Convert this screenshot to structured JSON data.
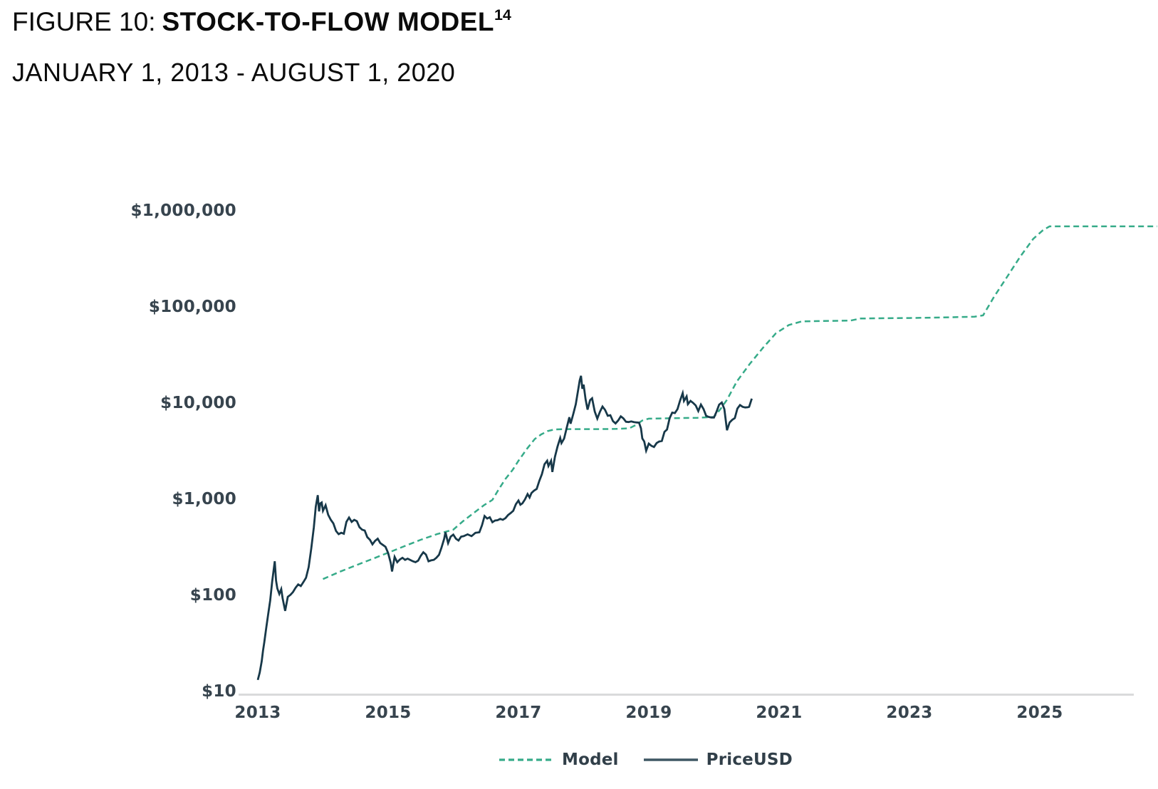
{
  "header": {
    "figure_label": "FIGURE 10:",
    "title": "STOCK-TO-FLOW MODEL",
    "footnote_marker": "14",
    "date_range": "JANUARY 1, 2013 - AUGUST 1, 2020"
  },
  "colors": {
    "model_line": "#36ab89",
    "price_line": "#173849",
    "axis_line": "#d9dadb",
    "tick_text": "#37444e",
    "legend_price_swatch": "#3e5764"
  },
  "legend": {
    "items": [
      {
        "label": "Model",
        "style": "dashed",
        "color": "#36ab89"
      },
      {
        "label": "PriceUSD",
        "style": "solid",
        "color": "#3e5764"
      }
    ]
  },
  "chart_data": {
    "type": "line",
    "title": "Stock-to-Flow Model",
    "xlabel": "",
    "ylabel": "",
    "grid": false,
    "legend_position": "bottom",
    "x_axis": {
      "scale": "linear",
      "range": [
        2012.7,
        2026.8
      ],
      "ticks": [
        2013,
        2015,
        2017,
        2019,
        2021,
        2023,
        2025
      ]
    },
    "y_axis": {
      "scale": "log",
      "range": [
        10,
        1000000
      ],
      "ticks": [
        {
          "label": "$1,000,000",
          "value": 1000000
        },
        {
          "label": "$100,000",
          "value": 100000
        },
        {
          "label": "$10,000",
          "value": 10000
        },
        {
          "label": "$1,000",
          "value": 1000
        },
        {
          "label": "$100",
          "value": 100
        },
        {
          "label": "$10",
          "value": 10
        }
      ]
    },
    "series": [
      {
        "name": "Model",
        "style": "dashed",
        "color": "#36ab89",
        "points": [
          [
            2014.0,
            150
          ],
          [
            2014.25,
            178
          ],
          [
            2014.5,
            208
          ],
          [
            2014.75,
            242
          ],
          [
            2015.0,
            282
          ],
          [
            2015.25,
            330
          ],
          [
            2015.5,
            385
          ],
          [
            2015.75,
            440
          ],
          [
            2016.0,
            490
          ],
          [
            2016.15,
            600
          ],
          [
            2016.3,
            720
          ],
          [
            2016.47,
            880
          ],
          [
            2016.6,
            1000
          ],
          [
            2016.7,
            1300
          ],
          [
            2016.8,
            1650
          ],
          [
            2016.91,
            2050
          ],
          [
            2017.0,
            2550
          ],
          [
            2017.13,
            3400
          ],
          [
            2017.25,
            4300
          ],
          [
            2017.35,
            4800
          ],
          [
            2017.45,
            5200
          ],
          [
            2017.55,
            5400
          ],
          [
            2017.75,
            5450
          ],
          [
            2018.0,
            5450
          ],
          [
            2018.25,
            5450
          ],
          [
            2018.5,
            5480
          ],
          [
            2018.7,
            5550
          ],
          [
            2018.8,
            6000
          ],
          [
            2018.9,
            6700
          ],
          [
            2019.0,
            7000
          ],
          [
            2019.25,
            7050
          ],
          [
            2019.5,
            7100
          ],
          [
            2019.75,
            7150
          ],
          [
            2020.0,
            7300
          ],
          [
            2020.1,
            8800
          ],
          [
            2020.2,
            11000
          ],
          [
            2020.35,
            17000
          ],
          [
            2020.55,
            26000
          ],
          [
            2020.75,
            38000
          ],
          [
            2020.95,
            54000
          ],
          [
            2021.15,
            66000
          ],
          [
            2021.35,
            72000
          ],
          [
            2021.6,
            72500
          ],
          [
            2021.9,
            73000
          ],
          [
            2022.1,
            73500
          ],
          [
            2022.25,
            77000
          ],
          [
            2022.6,
            77500
          ],
          [
            2023.0,
            78000
          ],
          [
            2023.5,
            79000
          ],
          [
            2024.0,
            80500
          ],
          [
            2024.13,
            83000
          ],
          [
            2024.3,
            130000
          ],
          [
            2024.5,
            210000
          ],
          [
            2024.7,
            340000
          ],
          [
            2024.9,
            520000
          ],
          [
            2025.05,
            640000
          ],
          [
            2025.15,
            700000
          ],
          [
            2025.5,
            700000
          ],
          [
            2026.0,
            700000
          ],
          [
            2026.8,
            700000
          ]
        ]
      },
      {
        "name": "PriceUSD",
        "style": "solid",
        "color": "#173849",
        "points": [
          [
            2013.0,
            13.4
          ],
          [
            2013.03,
            16
          ],
          [
            2013.06,
            21
          ],
          [
            2013.08,
            27
          ],
          [
            2013.1,
            33
          ],
          [
            2013.13,
            47
          ],
          [
            2013.16,
            65
          ],
          [
            2013.19,
            90
          ],
          [
            2013.22,
            140
          ],
          [
            2013.26,
            230
          ],
          [
            2013.28,
            145
          ],
          [
            2013.3,
            120
          ],
          [
            2013.33,
            105
          ],
          [
            2013.36,
            118
          ],
          [
            2013.38,
            95
          ],
          [
            2013.42,
            70
          ],
          [
            2013.46,
            98
          ],
          [
            2013.5,
            103
          ],
          [
            2013.54,
            110
          ],
          [
            2013.58,
            122
          ],
          [
            2013.62,
            132
          ],
          [
            2013.66,
            127
          ],
          [
            2013.7,
            140
          ],
          [
            2013.74,
            155
          ],
          [
            2013.78,
            200
          ],
          [
            2013.82,
            310
          ],
          [
            2013.86,
            520
          ],
          [
            2013.89,
            850
          ],
          [
            2013.92,
            1120
          ],
          [
            2013.94,
            760
          ],
          [
            2013.96,
            920
          ],
          [
            2013.98,
            940
          ],
          [
            2014.0,
            770
          ],
          [
            2014.04,
            880
          ],
          [
            2014.08,
            700
          ],
          [
            2014.12,
            620
          ],
          [
            2014.16,
            570
          ],
          [
            2014.2,
            475
          ],
          [
            2014.24,
            440
          ],
          [
            2014.28,
            455
          ],
          [
            2014.32,
            445
          ],
          [
            2014.36,
            590
          ],
          [
            2014.4,
            655
          ],
          [
            2014.44,
            590
          ],
          [
            2014.48,
            620
          ],
          [
            2014.52,
            600
          ],
          [
            2014.56,
            520
          ],
          [
            2014.6,
            490
          ],
          [
            2014.64,
            480
          ],
          [
            2014.68,
            410
          ],
          [
            2014.72,
            385
          ],
          [
            2014.76,
            345
          ],
          [
            2014.8,
            375
          ],
          [
            2014.84,
            395
          ],
          [
            2014.88,
            355
          ],
          [
            2014.92,
            340
          ],
          [
            2014.96,
            325
          ],
          [
            2015.0,
            280
          ],
          [
            2015.04,
            220
          ],
          [
            2015.06,
            180
          ],
          [
            2015.1,
            255
          ],
          [
            2015.14,
            225
          ],
          [
            2015.18,
            240
          ],
          [
            2015.22,
            250
          ],
          [
            2015.26,
            238
          ],
          [
            2015.3,
            245
          ],
          [
            2015.34,
            237
          ],
          [
            2015.38,
            230
          ],
          [
            2015.42,
            225
          ],
          [
            2015.46,
            233
          ],
          [
            2015.5,
            262
          ],
          [
            2015.54,
            285
          ],
          [
            2015.58,
            270
          ],
          [
            2015.62,
            230
          ],
          [
            2015.66,
            235
          ],
          [
            2015.7,
            238
          ],
          [
            2015.74,
            250
          ],
          [
            2015.78,
            268
          ],
          [
            2015.82,
            320
          ],
          [
            2015.86,
            395
          ],
          [
            2015.88,
            460
          ],
          [
            2015.92,
            355
          ],
          [
            2015.96,
            415
          ],
          [
            2016.0,
            435
          ],
          [
            2016.04,
            395
          ],
          [
            2016.08,
            378
          ],
          [
            2016.12,
            415
          ],
          [
            2016.16,
            420
          ],
          [
            2016.22,
            438
          ],
          [
            2016.28,
            420
          ],
          [
            2016.34,
            455
          ],
          [
            2016.4,
            460
          ],
          [
            2016.44,
            545
          ],
          [
            2016.48,
            680
          ],
          [
            2016.52,
            640
          ],
          [
            2016.56,
            660
          ],
          [
            2016.6,
            585
          ],
          [
            2016.64,
            610
          ],
          [
            2016.68,
            615
          ],
          [
            2016.72,
            635
          ],
          [
            2016.76,
            620
          ],
          [
            2016.8,
            645
          ],
          [
            2016.84,
            695
          ],
          [
            2016.88,
            730
          ],
          [
            2016.92,
            770
          ],
          [
            2016.96,
            900
          ],
          [
            2017.0,
            985
          ],
          [
            2017.03,
            890
          ],
          [
            2017.06,
            920
          ],
          [
            2017.1,
            1010
          ],
          [
            2017.14,
            1150
          ],
          [
            2017.17,
            1060
          ],
          [
            2017.2,
            1180
          ],
          [
            2017.24,
            1250
          ],
          [
            2017.28,
            1300
          ],
          [
            2017.32,
            1580
          ],
          [
            2017.36,
            1850
          ],
          [
            2017.4,
            2350
          ],
          [
            2017.44,
            2550
          ],
          [
            2017.46,
            2250
          ],
          [
            2017.5,
            2550
          ],
          [
            2017.52,
            1950
          ],
          [
            2017.56,
            2800
          ],
          [
            2017.6,
            3600
          ],
          [
            2017.64,
            4400
          ],
          [
            2017.66,
            3900
          ],
          [
            2017.7,
            4350
          ],
          [
            2017.74,
            5600
          ],
          [
            2017.78,
            7250
          ],
          [
            2017.8,
            6200
          ],
          [
            2017.84,
            7800
          ],
          [
            2017.88,
            9900
          ],
          [
            2017.92,
            14500
          ],
          [
            2017.94,
            17500
          ],
          [
            2017.96,
            19500
          ],
          [
            2017.98,
            14300
          ],
          [
            2018.0,
            15800
          ],
          [
            2018.03,
            11200
          ],
          [
            2018.06,
            8700
          ],
          [
            2018.1,
            10900
          ],
          [
            2018.13,
            11400
          ],
          [
            2018.17,
            8300
          ],
          [
            2018.21,
            7000
          ],
          [
            2018.25,
            8250
          ],
          [
            2018.29,
            9350
          ],
          [
            2018.33,
            8600
          ],
          [
            2018.37,
            7500
          ],
          [
            2018.41,
            7600
          ],
          [
            2018.45,
            6600
          ],
          [
            2018.49,
            6250
          ],
          [
            2018.53,
            6700
          ],
          [
            2018.57,
            7400
          ],
          [
            2018.61,
            7050
          ],
          [
            2018.65,
            6500
          ],
          [
            2018.69,
            6450
          ],
          [
            2018.73,
            6550
          ],
          [
            2018.77,
            6450
          ],
          [
            2018.81,
            6400
          ],
          [
            2018.85,
            6350
          ],
          [
            2018.88,
            5550
          ],
          [
            2018.9,
            4350
          ],
          [
            2018.93,
            4050
          ],
          [
            2018.96,
            3250
          ],
          [
            2019.0,
            3850
          ],
          [
            2019.04,
            3650
          ],
          [
            2019.08,
            3550
          ],
          [
            2019.12,
            3900
          ],
          [
            2019.16,
            4050
          ],
          [
            2019.2,
            4100
          ],
          [
            2019.24,
            5100
          ],
          [
            2019.28,
            5400
          ],
          [
            2019.32,
            7100
          ],
          [
            2019.36,
            8100
          ],
          [
            2019.4,
            8000
          ],
          [
            2019.44,
            8800
          ],
          [
            2019.48,
            10800
          ],
          [
            2019.52,
            12900
          ],
          [
            2019.54,
            10700
          ],
          [
            2019.58,
            11900
          ],
          [
            2019.6,
            9900
          ],
          [
            2019.64,
            10700
          ],
          [
            2019.68,
            10200
          ],
          [
            2019.72,
            9600
          ],
          [
            2019.76,
            8400
          ],
          [
            2019.8,
            9800
          ],
          [
            2019.84,
            8800
          ],
          [
            2019.88,
            7500
          ],
          [
            2019.92,
            7300
          ],
          [
            2019.96,
            7200
          ],
          [
            2020.0,
            7200
          ],
          [
            2020.04,
            8300
          ],
          [
            2020.08,
            9800
          ],
          [
            2020.12,
            10300
          ],
          [
            2020.16,
            8800
          ],
          [
            2020.2,
            5300
          ],
          [
            2020.24,
            6400
          ],
          [
            2020.28,
            6800
          ],
          [
            2020.32,
            7100
          ],
          [
            2020.36,
            8900
          ],
          [
            2020.4,
            9700
          ],
          [
            2020.44,
            9300
          ],
          [
            2020.48,
            9150
          ],
          [
            2020.52,
            9200
          ],
          [
            2020.54,
            9300
          ],
          [
            2020.58,
            11300
          ]
        ]
      }
    ]
  }
}
